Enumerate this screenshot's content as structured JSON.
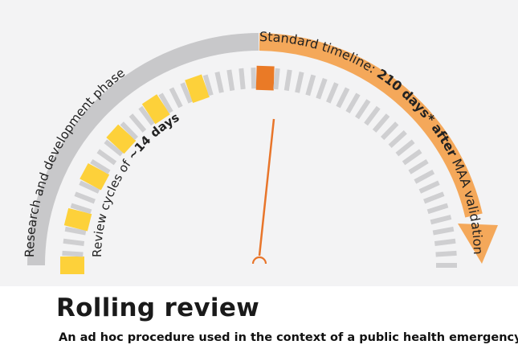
{
  "diagram": {
    "labels": {
      "rd_phase": "Research and development phase",
      "review_cycles_prefix": "Review cycles of ",
      "review_cycles_bold": "~14 days",
      "timeline_prefix": "Standard timeline: ",
      "timeline_bold": "210 days* after",
      "timeline_suffix": " MAA validation"
    },
    "ticks": {
      "count": 52,
      "highlighted": [
        0,
        4,
        8,
        12,
        16,
        20
      ],
      "current": 26
    },
    "colors": {
      "rd_band": "#c8c8ca",
      "timeline_band": "#f4a85a",
      "tick_default": "#cfcfd1",
      "tick_highlight": "#fdd13a",
      "tick_current": "#ea7a26",
      "needle": "#e8752a",
      "background": "#f3f3f4"
    }
  },
  "title": "Rolling review",
  "subtitle": "An ad hoc procedure used in the context of a public health emergency"
}
